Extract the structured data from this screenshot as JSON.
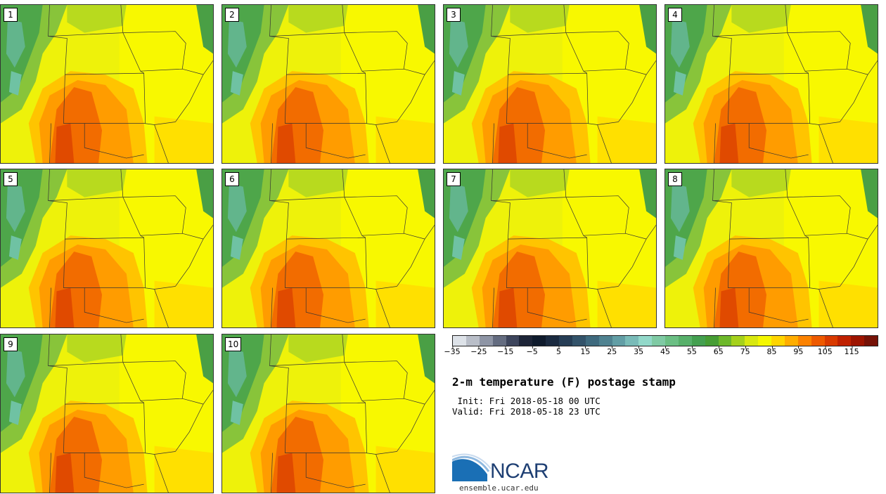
{
  "panels": [
    "1",
    "2",
    "3",
    "4",
    "5",
    "6",
    "7",
    "8",
    "9",
    "10"
  ],
  "colorbar": {
    "colors": [
      "#dde2e8",
      "#b9bec8",
      "#8e95a5",
      "#646c80",
      "#3d455c",
      "#1d2538",
      "#0f1b2d",
      "#1a2a40",
      "#263d55",
      "#33536a",
      "#3f6a7e",
      "#4f8290",
      "#629ea5",
      "#79bbb8",
      "#92d8c9",
      "#7fcaa4",
      "#6bbf84",
      "#57b06a",
      "#44a050",
      "#469d34",
      "#6db82a",
      "#a5d11c",
      "#d8e810",
      "#f4f700",
      "#ffd500",
      "#ffad00",
      "#fb8200",
      "#ee5a00",
      "#d93a00",
      "#bf2100",
      "#9d1400",
      "#761207"
    ],
    "tick_labels": [
      "−35",
      "−25",
      "−15",
      "−5",
      "5",
      "15",
      "25",
      "35",
      "45",
      "55",
      "65",
      "75",
      "85",
      "95",
      "105",
      "115"
    ]
  },
  "title": "2-m temperature (F) postage stamp",
  "init_line": " Init: Fri 2018-05-18 00 UTC",
  "valid_line": "Valid: Fri 2018-05-18 23 UTC",
  "logo": {
    "name": "NCAR",
    "url_text": "ensemble.ucar.edu"
  }
}
